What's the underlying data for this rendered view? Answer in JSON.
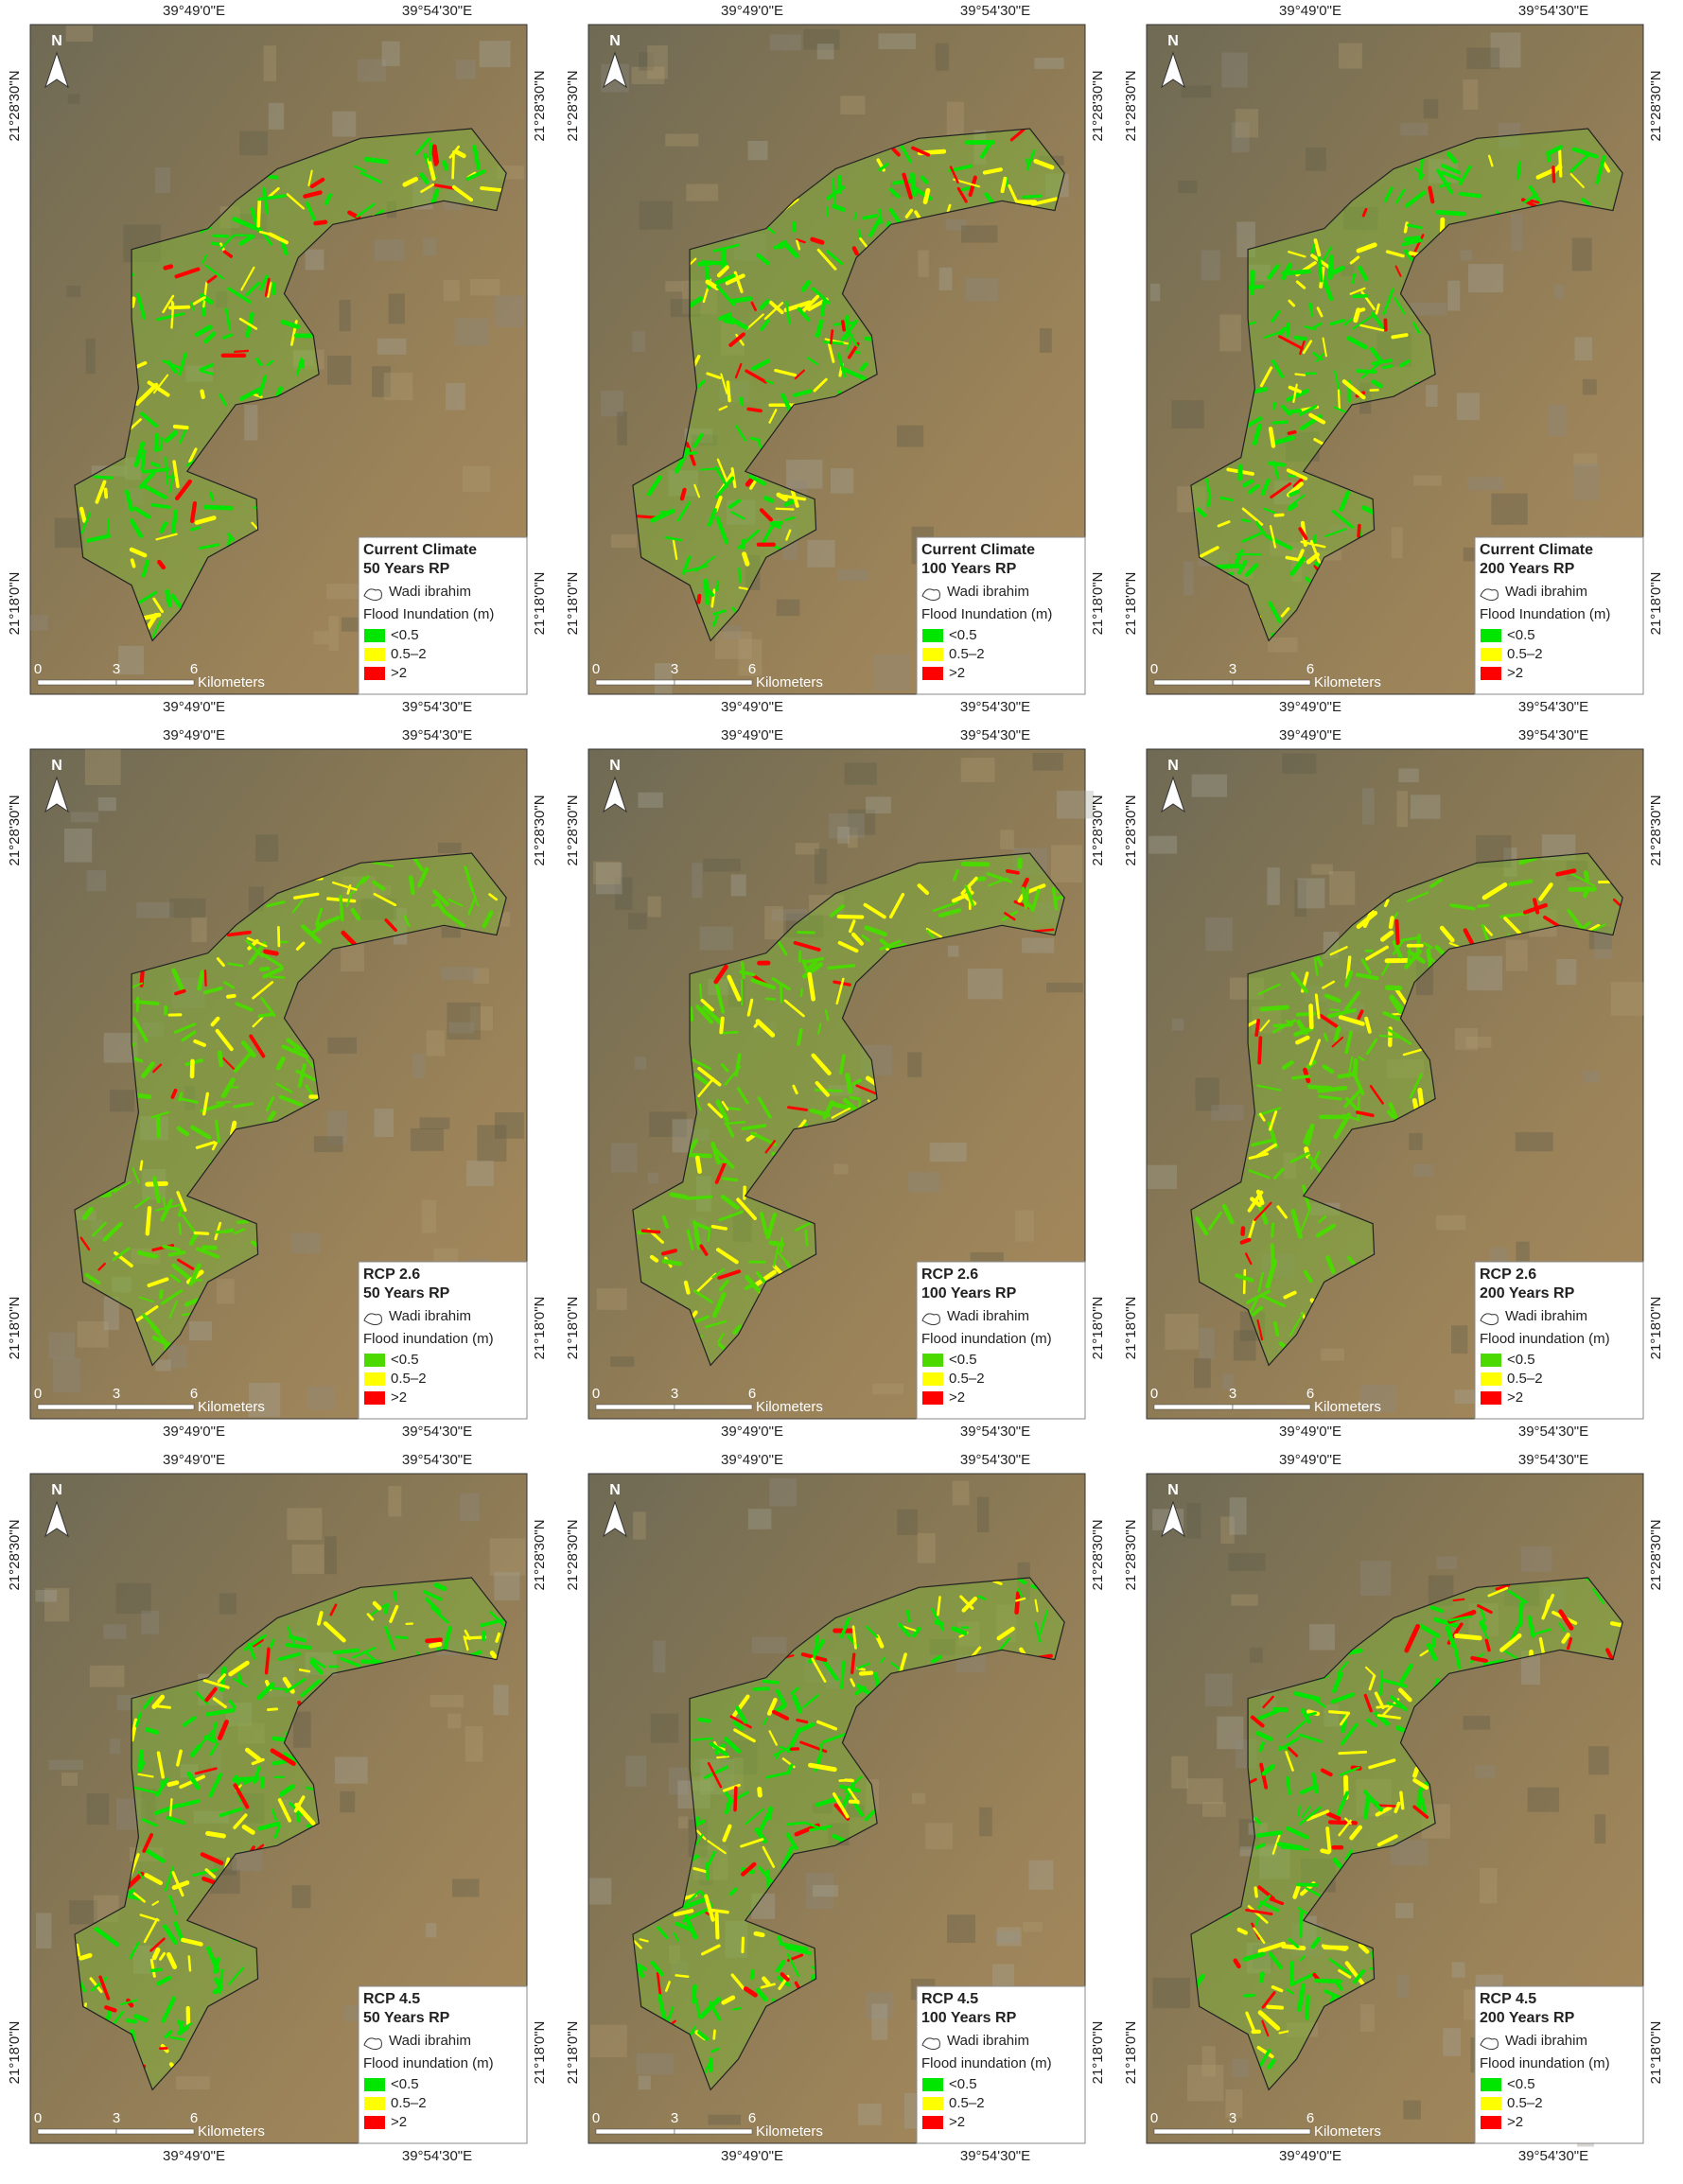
{
  "panels": [
    {
      "scenario": "Current Climate",
      "return_period": "50 Years RP",
      "lon": [
        "39°49'0\"E",
        "39°54'30\"E"
      ],
      "lat": [
        "21°28'30\"N",
        "21°18'0\"N"
      ],
      "north": "N",
      "boundary": "Wadi ibrahim",
      "legend_title": "Flood Inundation (m)",
      "legend": [
        {
          "label": "<0.5",
          "color": "#00e600"
        },
        {
          "label": "0.5–2",
          "color": "#ffff00"
        },
        {
          "label": ">2",
          "color": "#ff0000"
        }
      ],
      "scale": [
        "0",
        "3",
        "6",
        "Kilometers"
      ]
    },
    {
      "scenario": "Current Climate",
      "return_period": "100 Years RP",
      "lon": [
        "39°49'0\"E",
        "39°54'30\"E"
      ],
      "lat": [
        "21°28'30\"N",
        "21°18'0\"N"
      ],
      "north": "N",
      "boundary": "Wadi ibrahim",
      "legend_title": "Flood Inundation (m)",
      "legend": [
        {
          "label": "<0.5",
          "color": "#00e600"
        },
        {
          "label": "0.5–2",
          "color": "#ffff00"
        },
        {
          "label": ">2",
          "color": "#ff0000"
        }
      ],
      "scale": [
        "0",
        "3",
        "6",
        "Kilometers"
      ]
    },
    {
      "scenario": "Current Climate",
      "return_period": "200 Years RP",
      "lon": [
        "39°49'0\"E",
        "39°54'30\"E"
      ],
      "lat": [
        "21°28'30\"N",
        "21°18'0\"N"
      ],
      "north": "N",
      "boundary": "Wadi ibrahim",
      "legend_title": "Flood Inundation (m)",
      "legend": [
        {
          "label": "<0.5",
          "color": "#00e600"
        },
        {
          "label": "0.5–2",
          "color": "#ffff00"
        },
        {
          "label": ">2",
          "color": "#ff0000"
        }
      ],
      "scale": [
        "0",
        "3",
        "6",
        "Kilometers"
      ]
    },
    {
      "scenario": "RCP 2.6",
      "return_period": "50 Years RP",
      "lon": [
        "39°49'0\"E",
        "39°54'30\"E"
      ],
      "lat": [
        "21°28'30\"N",
        "21°18'0\"N"
      ],
      "north": "N",
      "boundary": "Wadi ibrahim",
      "legend_title": "Flood inundation (m)",
      "legend": [
        {
          "label": "<0.5",
          "color": "#4cd900"
        },
        {
          "label": "0.5–2",
          "color": "#ffff00"
        },
        {
          "label": ">2",
          "color": "#ff0000"
        }
      ],
      "scale": [
        "0",
        "3",
        "6",
        "Kilometers"
      ]
    },
    {
      "scenario": "RCP 2.6",
      "return_period": "100 Years RP",
      "lon": [
        "39°49'0\"E",
        "39°54'30\"E"
      ],
      "lat": [
        "21°28'30\"N",
        "21°18'0\"N"
      ],
      "north": "N",
      "boundary": "Wadi ibrahim",
      "legend_title": "Flood inundation (m)",
      "legend": [
        {
          "label": "<0.5",
          "color": "#4cd900"
        },
        {
          "label": "0.5–2",
          "color": "#ffff00"
        },
        {
          "label": ">2",
          "color": "#ff0000"
        }
      ],
      "scale": [
        "0",
        "3",
        "6",
        "Kilometers"
      ]
    },
    {
      "scenario": "RCP 2.6",
      "return_period": "200 Years RP",
      "lon": [
        "39°49'0\"E",
        "39°54'30\"E"
      ],
      "lat": [
        "21°28'30\"N",
        "21°18'0\"N"
      ],
      "north": "N",
      "boundary": "Wadi ibrahim",
      "legend_title": "Flood inundation (m)",
      "legend": [
        {
          "label": "<0.5",
          "color": "#4cd900"
        },
        {
          "label": "0.5–2",
          "color": "#ffff00"
        },
        {
          "label": ">2",
          "color": "#ff0000"
        }
      ],
      "scale": [
        "0",
        "3",
        "6",
        "Kilometers"
      ]
    },
    {
      "scenario": "RCP 4.5",
      "return_period": "50 Years RP",
      "lon": [
        "39°49'0\"E",
        "39°54'30\"E"
      ],
      "lat": [
        "21°28'30\"N",
        "21°18'0\"N"
      ],
      "north": "N",
      "boundary": "Wadi ibrahim",
      "legend_title": "Flood inundation (m)",
      "legend": [
        {
          "label": "<0.5",
          "color": "#00e600"
        },
        {
          "label": "0.5–2",
          "color": "#ffff00"
        },
        {
          "label": ">2",
          "color": "#ff0000"
        }
      ],
      "scale": [
        "0",
        "3",
        "6",
        "Kilometers"
      ]
    },
    {
      "scenario": "RCP 4.5",
      "return_period": "100 Years RP",
      "lon": [
        "39°49'0\"E",
        "39°54'30\"E"
      ],
      "lat": [
        "21°28'30\"N",
        "21°18'0\"N"
      ],
      "north": "N",
      "boundary": "Wadi ibrahim",
      "legend_title": "Flood inundation (m)",
      "legend": [
        {
          "label": "<0.5",
          "color": "#00e600"
        },
        {
          "label": "0.5–2",
          "color": "#ffff00"
        },
        {
          "label": ">2",
          "color": "#ff0000"
        }
      ],
      "scale": [
        "0",
        "3",
        "6",
        "Kilometers"
      ]
    },
    {
      "scenario": "RCP 4.5",
      "return_period": "200 Years RP",
      "lon": [
        "39°49'0\"E",
        "39°54'30\"E"
      ],
      "lat": [
        "21°28'30\"N",
        "21°18'0\"N"
      ],
      "north": "N",
      "boundary": "Wadi ibrahim",
      "legend_title": "Flood inundation (m)",
      "legend": [
        {
          "label": "<0.5",
          "color": "#00e600"
        },
        {
          "label": "0.5–2",
          "color": "#ffff00"
        },
        {
          "label": ">2",
          "color": "#ff0000"
        }
      ],
      "scale": [
        "0",
        "3",
        "6",
        "Kilometers"
      ]
    }
  ]
}
